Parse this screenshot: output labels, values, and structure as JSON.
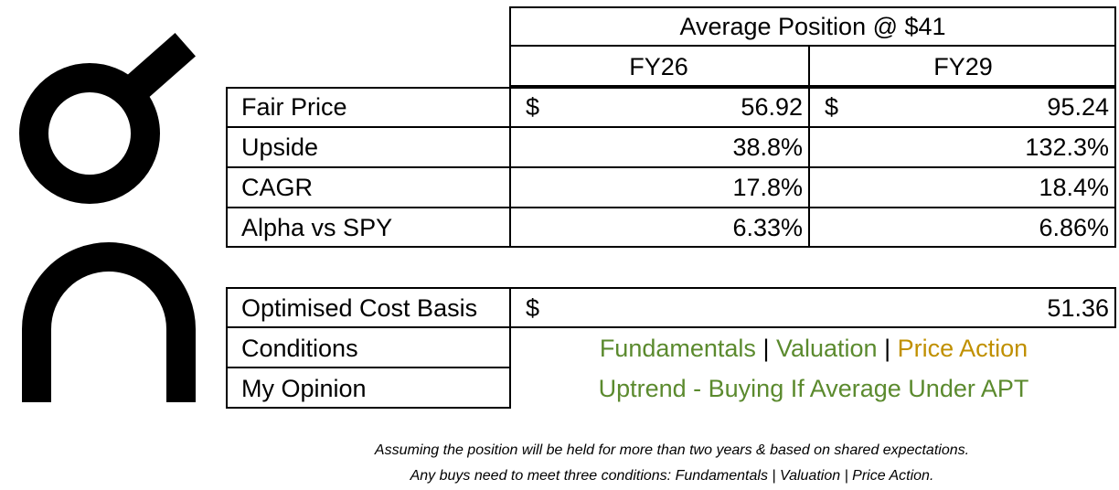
{
  "header": {
    "title": "Average Position @ $41",
    "col1": "FY26",
    "col2": "FY29"
  },
  "metrics": [
    {
      "label": "Fair Price",
      "fy26": "56.92",
      "fy29": "95.24",
      "currency": "$"
    },
    {
      "label": "Upside",
      "fy26": "38.8%",
      "fy29": "132.3%"
    },
    {
      "label": "CAGR",
      "fy26": "17.8%",
      "fy29": "18.4%"
    },
    {
      "label": "Alpha vs SPY",
      "fy26": "6.33%",
      "fy29": "6.86%"
    }
  ],
  "summary": {
    "cost_basis_label": "Optimised Cost Basis",
    "cost_basis_currency": "$",
    "cost_basis_value": "51.36",
    "conditions_label": "Conditions",
    "conditions": {
      "fundamentals": "Fundamentals",
      "sep1": "|",
      "valuation": "Valuation",
      "sep2": "|",
      "price_action": "Price Action"
    },
    "opinion_label": "My Opinion",
    "opinion_value": "Uptrend - Buying If Average Under APT"
  },
  "colors": {
    "green": "#5b8a2e",
    "gold": "#c09000"
  },
  "footer": {
    "line1": "Assuming the position will be held for more than two years & based on shared expectations.",
    "line2": "Any buys need to meet three conditions: Fundamentals | Valuation | Price Action."
  },
  "logo": {
    "icon": "on-brand-logo-icon"
  }
}
